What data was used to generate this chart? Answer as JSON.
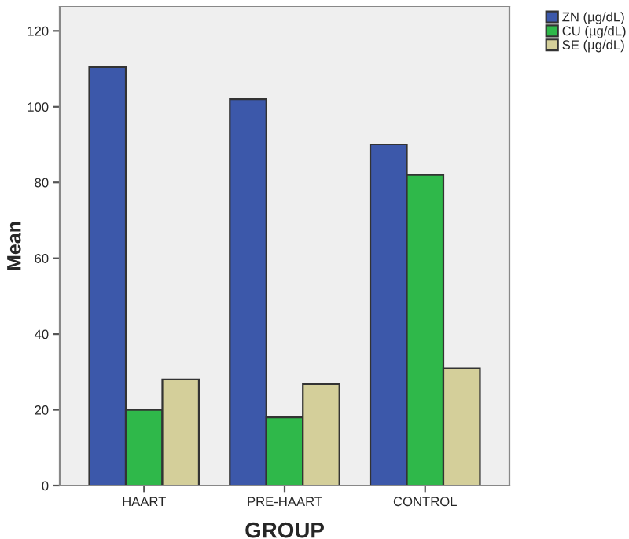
{
  "chart_data": {
    "type": "bar",
    "xlabel": "GROUP",
    "ylabel": "Mean",
    "categories": [
      "HAART",
      "PRE-HAART",
      "CONTROL"
    ],
    "series": [
      {
        "name": "ZN (µg/dL)",
        "color": "#3c58aa",
        "values": [
          110.5,
          102,
          90
        ]
      },
      {
        "name": "CU (µg/dL)",
        "color": "#2fb84a",
        "values": [
          20,
          18,
          82
        ]
      },
      {
        "name": "SE (µg/dL)",
        "color": "#d4cf9a",
        "values": [
          28,
          26.8,
          31
        ]
      }
    ],
    "ylim": [
      0,
      126.5
    ],
    "yticks": [
      0,
      20,
      40,
      60,
      80,
      100,
      120
    ],
    "grid": false,
    "legend": "top right"
  }
}
